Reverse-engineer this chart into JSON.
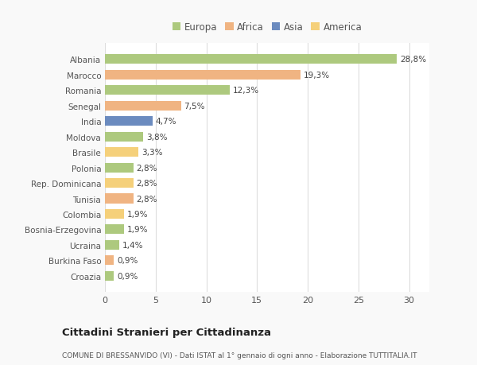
{
  "categories": [
    "Albania",
    "Marocco",
    "Romania",
    "Senegal",
    "India",
    "Moldova",
    "Brasile",
    "Polonia",
    "Rep. Dominicana",
    "Tunisia",
    "Colombia",
    "Bosnia-Erzegovina",
    "Ucraina",
    "Burkina Faso",
    "Croazia"
  ],
  "values": [
    28.8,
    19.3,
    12.3,
    7.5,
    4.7,
    3.8,
    3.3,
    2.8,
    2.8,
    2.8,
    1.9,
    1.9,
    1.4,
    0.9,
    0.9
  ],
  "labels": [
    "28,8%",
    "19,3%",
    "12,3%",
    "7,5%",
    "4,7%",
    "3,8%",
    "3,3%",
    "2,8%",
    "2,8%",
    "2,8%",
    "1,9%",
    "1,9%",
    "1,4%",
    "0,9%",
    "0,9%"
  ],
  "colors": [
    "#adc97e",
    "#f0b482",
    "#adc97e",
    "#f0b482",
    "#6b8bbf",
    "#adc97e",
    "#f5d07a",
    "#adc97e",
    "#f5d07a",
    "#f0b482",
    "#f5d07a",
    "#adc97e",
    "#adc97e",
    "#f0b482",
    "#adc97e"
  ],
  "legend": [
    {
      "label": "Europa",
      "color": "#adc97e"
    },
    {
      "label": "Africa",
      "color": "#f0b482"
    },
    {
      "label": "Asia",
      "color": "#6b8bbf"
    },
    {
      "label": "America",
      "color": "#f5d07a"
    }
  ],
  "xlim": [
    0,
    32
  ],
  "xticks": [
    0,
    5,
    10,
    15,
    20,
    25,
    30
  ],
  "title": "Cittadini Stranieri per Cittadinanza",
  "subtitle": "COMUNE DI BRESSANVIDO (VI) - Dati ISTAT al 1° gennaio di ogni anno - Elaborazione TUTTITALIA.IT",
  "background_color": "#f9f9f9",
  "bar_background": "#ffffff",
  "grid_color": "#dddddd",
  "text_color": "#555555",
  "label_color": "#444444"
}
